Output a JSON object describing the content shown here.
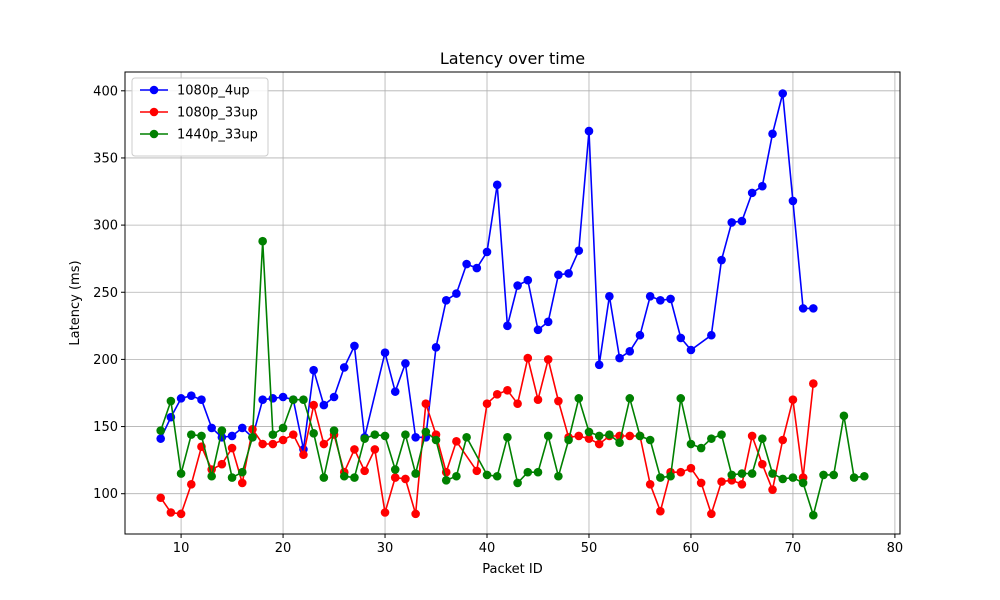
{
  "chart_data": {
    "type": "line",
    "title": "Latency over time",
    "xlabel": "Packet ID",
    "ylabel": "Latency (ms)",
    "xlim": [
      4.5,
      80.5
    ],
    "ylim": [
      70,
      414
    ],
    "xticks": [
      10,
      20,
      30,
      40,
      50,
      60,
      70,
      80
    ],
    "yticks": [
      100,
      150,
      200,
      250,
      300,
      350,
      400
    ],
    "grid": true,
    "legend_position": "top-left",
    "series": [
      {
        "name": "1080p_4up",
        "color": "#0000ff",
        "x": [
          8,
          9,
          10,
          11,
          12,
          13,
          14,
          15,
          16,
          17,
          18,
          19,
          20,
          21,
          22,
          23,
          24,
          25,
          26,
          27,
          28,
          30,
          31,
          32,
          33,
          34,
          35,
          36,
          37,
          38,
          39,
          40,
          41,
          42,
          43,
          44,
          45,
          46,
          47,
          48,
          49,
          50,
          51,
          52,
          53,
          54,
          55,
          56,
          57,
          58,
          59,
          60,
          62,
          63,
          64,
          65,
          66,
          67,
          68,
          69,
          70,
          71,
          72
        ],
        "y": [
          141,
          157,
          171,
          173,
          170,
          149,
          142,
          143,
          149,
          142,
          170,
          171,
          172,
          170,
          133,
          192,
          166,
          172,
          194,
          210,
          142,
          205,
          176,
          197,
          142,
          142,
          209,
          244,
          249,
          271,
          268,
          280,
          330,
          225,
          255,
          259,
          222,
          228,
          263,
          264,
          281,
          370,
          196,
          247,
          201,
          206,
          218,
          247,
          244,
          245,
          216,
          207,
          218,
          274,
          302,
          303,
          324,
          329,
          368,
          398,
          318,
          238,
          238
        ]
      },
      {
        "name": "1080p_33up",
        "color": "#ff0000",
        "x": [
          8,
          9,
          10,
          11,
          12,
          13,
          14,
          15,
          16,
          17,
          18,
          19,
          20,
          21,
          22,
          23,
          24,
          25,
          26,
          27,
          28,
          29,
          30,
          31,
          32,
          33,
          34,
          35,
          36,
          37,
          39,
          40,
          41,
          42,
          43,
          44,
          45,
          46,
          47,
          48,
          49,
          50,
          51,
          52,
          53,
          54,
          55,
          56,
          57,
          58,
          59,
          60,
          61,
          62,
          63,
          64,
          65,
          66,
          67,
          68,
          69,
          70,
          71,
          72
        ],
        "y": [
          97,
          86,
          85,
          107,
          135,
          118,
          122,
          134,
          108,
          148,
          137,
          137,
          140,
          144,
          129,
          166,
          137,
          144,
          116,
          133,
          117,
          133,
          86,
          112,
          111,
          85,
          167,
          144,
          116,
          139,
          117,
          167,
          174,
          177,
          167,
          201,
          170,
          200,
          169,
          142,
          143,
          141,
          137,
          143,
          143,
          143,
          143,
          107,
          87,
          116,
          116,
          119,
          108,
          85,
          109,
          110,
          107,
          143,
          122,
          103,
          140,
          170,
          112,
          182
        ]
      },
      {
        "name": "1440p_33up",
        "color": "#008000",
        "x": [
          8,
          9,
          10,
          11,
          12,
          13,
          14,
          15,
          16,
          17,
          18,
          19,
          20,
          21,
          22,
          23,
          24,
          25,
          26,
          27,
          28,
          29,
          30,
          31,
          32,
          33,
          34,
          35,
          36,
          37,
          38,
          40,
          41,
          42,
          43,
          44,
          45,
          46,
          47,
          48,
          49,
          50,
          51,
          52,
          53,
          54,
          55,
          56,
          57,
          58,
          59,
          60,
          61,
          62,
          63,
          64,
          65,
          66,
          67,
          68,
          69,
          70,
          71,
          72,
          73,
          74,
          75,
          76,
          77
        ],
        "y": [
          147,
          169,
          115,
          144,
          143,
          113,
          147,
          112,
          116,
          142,
          288,
          144,
          149,
          170,
          170,
          145,
          112,
          147,
          113,
          112,
          141,
          144,
          143,
          118,
          144,
          115,
          146,
          140,
          110,
          113,
          142,
          114,
          113,
          142,
          108,
          116,
          116,
          143,
          113,
          140,
          171,
          146,
          143,
          144,
          138,
          171,
          143,
          140,
          112,
          113,
          171,
          137,
          134,
          141,
          144,
          114,
          115,
          115,
          141,
          115,
          111,
          112,
          108,
          84,
          114,
          114,
          158,
          112,
          113
        ]
      }
    ]
  }
}
